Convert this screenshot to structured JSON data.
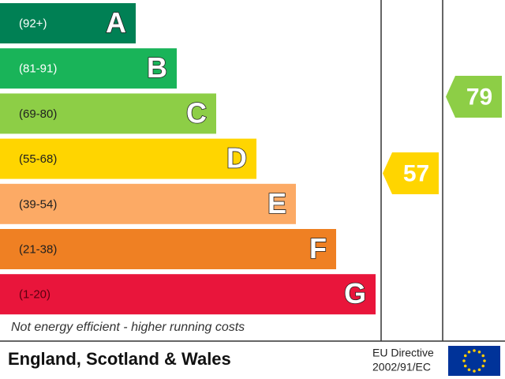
{
  "bands": [
    {
      "range": "(92+)",
      "letter": "A",
      "color": "#008054",
      "text_color": "#ffffff"
    },
    {
      "range": "(81-91)",
      "letter": "B",
      "color": "#19b459",
      "text_color": "#ffffff"
    },
    {
      "range": "(69-80)",
      "letter": "C",
      "color": "#8dce46",
      "text_color": "#1f1f1f"
    },
    {
      "range": "(55-68)",
      "letter": "D",
      "color": "#ffd500",
      "text_color": "#1f1f1f"
    },
    {
      "range": "(39-54)",
      "letter": "E",
      "color": "#fcaa65",
      "text_color": "#1f1f1f"
    },
    {
      "range": "(21-38)",
      "letter": "F",
      "color": "#ef8023",
      "text_color": "#1f1f1f"
    },
    {
      "range": "(1-20)",
      "letter": "G",
      "color": "#e9153b",
      "text_color": "#5a0010"
    }
  ],
  "footer_note": "Not energy efficient - higher running costs",
  "current": {
    "value": 57,
    "color": "#ffd500"
  },
  "potential": {
    "value": 79,
    "color": "#8dce46"
  },
  "region": "England, Scotland & Wales",
  "directive": [
    "EU Directive",
    "2002/91/EC"
  ]
}
